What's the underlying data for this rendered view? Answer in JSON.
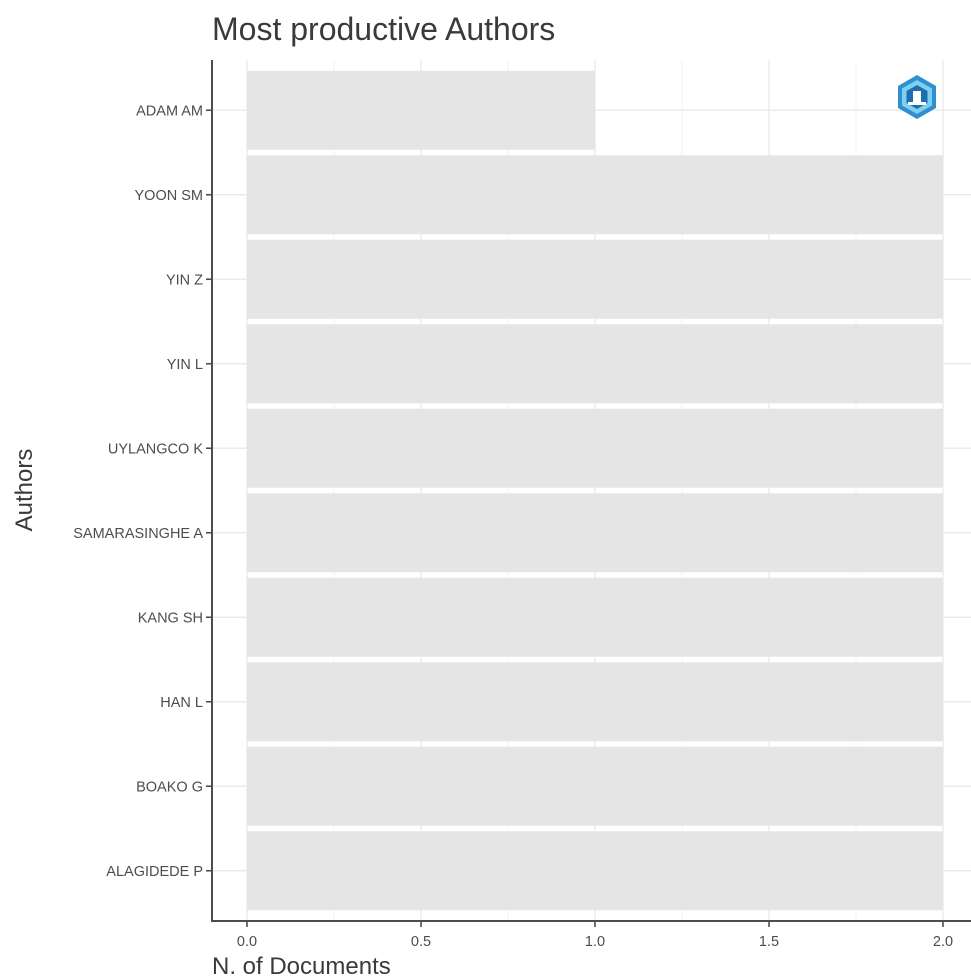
{
  "chart_data": {
    "type": "bar",
    "orientation": "horizontal",
    "title": "Most productive Authors",
    "xlabel": "N. of Documents",
    "ylabel": "Authors",
    "categories": [
      "ADAM AM",
      "YOON SM",
      "YIN Z",
      "YIN L",
      "UYLANGCO K",
      "SAMARASINGHE A",
      "KANG SH",
      "HAN L",
      "BOAKO G",
      "ALAGIDEDE P"
    ],
    "values": [
      1,
      2,
      2,
      2,
      2,
      2,
      2,
      2,
      2,
      2
    ],
    "xlim": [
      0,
      2
    ],
    "xticks": [
      "0.0",
      "0.5",
      "1.0",
      "1.5",
      "2.0"
    ],
    "grid": true,
    "bar_color": "#e5e5e5"
  },
  "logo": {
    "icon": "bibliometrix-hexagon-logo-icon"
  }
}
